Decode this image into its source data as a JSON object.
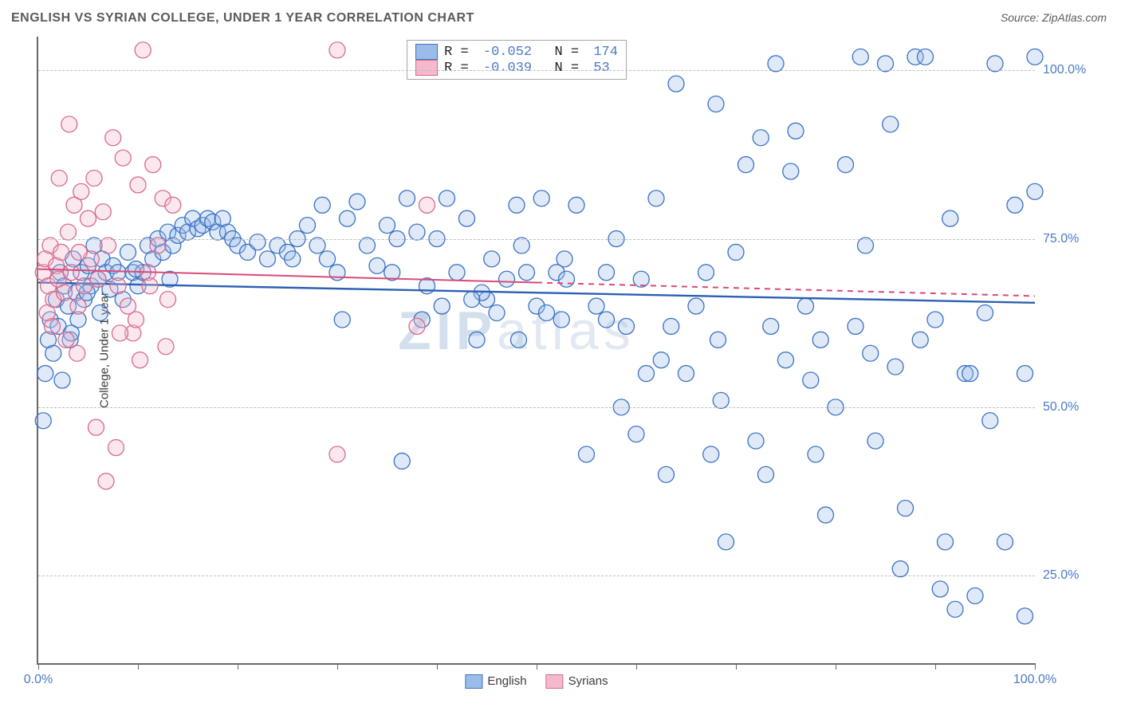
{
  "title": "ENGLISH VS SYRIAN COLLEGE, UNDER 1 YEAR CORRELATION CHART",
  "source": "Source: ZipAtlas.com",
  "ylabel": "College, Under 1 year",
  "watermark": "ZIPatlas",
  "chart": {
    "type": "scatter",
    "background_color": "#ffffff",
    "grid_color": "#bfbfbf",
    "axis_color": "#6a6a6a",
    "tick_label_color": "#4a7ac7",
    "xlim": [
      0,
      100
    ],
    "ylim": [
      12,
      105
    ],
    "yticks": [
      25,
      50,
      75,
      100
    ],
    "ytick_labels": [
      "25.0%",
      "50.0%",
      "75.0%",
      "100.0%"
    ],
    "xticks": [
      0,
      10,
      20,
      30,
      40,
      50,
      60,
      70,
      80,
      90,
      100
    ],
    "xtick_labels": {
      "0": "0.0%",
      "100": "100.0%"
    },
    "marker_radius": 10,
    "marker_stroke_width": 1.3,
    "marker_fill_opacity": 0.32,
    "series": [
      {
        "name": "English",
        "stroke": "#3a72c4",
        "fill": "#9cbce8",
        "R": "-0.052",
        "N": "174",
        "regression": {
          "x1": 0,
          "y1": 68.5,
          "x2": 100,
          "y2": 65.5,
          "solid_until_x": 100,
          "color": "#2d5fb3",
          "width": 2.4
        },
        "points": [
          [
            0.5,
            48
          ],
          [
            0.7,
            55
          ],
          [
            1,
            60
          ],
          [
            1.2,
            63
          ],
          [
            1.5,
            58
          ],
          [
            1.8,
            66
          ],
          [
            2,
            62
          ],
          [
            2.2,
            70
          ],
          [
            2.4,
            54
          ],
          [
            2.6,
            68
          ],
          [
            3,
            65
          ],
          [
            3.2,
            60
          ],
          [
            3.5,
            72
          ],
          [
            3.8,
            67
          ],
          [
            4,
            63
          ],
          [
            4.3,
            70
          ],
          [
            4.6,
            66
          ],
          [
            5,
            71
          ],
          [
            5.3,
            68
          ],
          [
            5.6,
            74
          ],
          [
            6,
            69
          ],
          [
            6.4,
            72
          ],
          [
            6.8,
            70
          ],
          [
            7.2,
            67.5
          ],
          [
            7.5,
            71
          ],
          [
            8,
            70
          ],
          [
            8.5,
            66
          ],
          [
            9,
            73
          ],
          [
            9.5,
            70
          ],
          [
            10,
            68
          ],
          [
            10.5,
            70
          ],
          [
            11,
            74
          ],
          [
            11.5,
            72
          ],
          [
            12,
            75
          ],
          [
            12.5,
            73
          ],
          [
            13,
            76
          ],
          [
            13.5,
            74
          ],
          [
            14,
            75.5
          ],
          [
            14.5,
            77
          ],
          [
            15,
            76
          ],
          [
            15.5,
            78
          ],
          [
            16,
            76.5
          ],
          [
            16.5,
            77
          ],
          [
            17,
            78
          ],
          [
            17.5,
            77.5
          ],
          [
            18,
            76
          ],
          [
            18.5,
            78
          ],
          [
            19,
            76
          ],
          [
            19.5,
            75
          ],
          [
            20,
            74
          ],
          [
            21,
            73
          ],
          [
            22,
            74.5
          ],
          [
            23,
            72
          ],
          [
            24,
            74
          ],
          [
            25,
            73
          ],
          [
            25.5,
            72
          ],
          [
            26,
            75
          ],
          [
            27,
            77
          ],
          [
            28,
            74
          ],
          [
            28.5,
            80
          ],
          [
            29,
            72
          ],
          [
            30,
            70
          ],
          [
            30.5,
            63
          ],
          [
            31,
            78
          ],
          [
            32,
            80.5
          ],
          [
            33,
            74
          ],
          [
            34,
            71
          ],
          [
            35,
            77
          ],
          [
            35.5,
            70
          ],
          [
            36,
            75
          ],
          [
            37,
            81
          ],
          [
            38,
            76
          ],
          [
            38.5,
            63
          ],
          [
            39,
            68
          ],
          [
            40,
            75
          ],
          [
            41,
            81
          ],
          [
            42,
            70
          ],
          [
            43,
            78
          ],
          [
            44,
            60
          ],
          [
            45,
            66
          ],
          [
            45.5,
            72
          ],
          [
            46,
            64
          ],
          [
            47,
            69
          ],
          [
            48,
            80
          ],
          [
            48.5,
            74
          ],
          [
            49,
            70
          ],
          [
            50,
            65
          ],
          [
            50.5,
            81
          ],
          [
            51,
            64
          ],
          [
            52,
            70
          ],
          [
            52.5,
            63
          ],
          [
            53,
            69
          ],
          [
            54,
            80
          ],
          [
            55,
            43
          ],
          [
            56,
            65
          ],
          [
            57,
            70
          ],
          [
            58,
            75
          ],
          [
            58.5,
            50
          ],
          [
            59,
            62
          ],
          [
            60,
            46
          ],
          [
            60.5,
            69
          ],
          [
            61,
            55
          ],
          [
            62,
            81
          ],
          [
            62.5,
            57
          ],
          [
            63,
            40
          ],
          [
            64,
            98
          ],
          [
            65,
            55
          ],
          [
            66,
            65
          ],
          [
            67,
            70
          ],
          [
            68,
            95
          ],
          [
            68.5,
            51
          ],
          [
            69,
            30
          ],
          [
            70,
            73
          ],
          [
            71,
            86
          ],
          [
            72,
            45
          ],
          [
            73,
            40
          ],
          [
            74,
            101
          ],
          [
            75,
            57
          ],
          [
            75.5,
            85
          ],
          [
            76,
            91
          ],
          [
            77,
            65
          ],
          [
            77.5,
            54
          ],
          [
            78,
            43
          ],
          [
            79,
            34
          ],
          [
            80,
            50
          ],
          [
            81,
            86
          ],
          [
            82,
            62
          ],
          [
            82.5,
            102
          ],
          [
            83,
            74
          ],
          [
            84,
            45
          ],
          [
            85,
            101
          ],
          [
            86,
            56
          ],
          [
            86.5,
            26
          ],
          [
            87,
            35
          ],
          [
            88,
            102
          ],
          [
            89,
            102
          ],
          [
            90,
            63
          ],
          [
            91,
            30
          ],
          [
            91.5,
            78
          ],
          [
            92,
            20
          ],
          [
            93,
            55
          ],
          [
            94,
            22
          ],
          [
            95,
            64
          ],
          [
            96,
            101
          ],
          [
            97,
            30
          ],
          [
            98,
            80
          ],
          [
            99,
            55
          ],
          [
            100,
            82
          ],
          [
            100,
            102
          ],
          [
            99,
            19
          ],
          [
            40.5,
            65
          ],
          [
            44.5,
            67
          ],
          [
            48.2,
            60
          ],
          [
            52.8,
            72
          ],
          [
            57,
            63
          ],
          [
            63.5,
            62
          ],
          [
            68.2,
            60
          ],
          [
            73.5,
            62
          ],
          [
            78.5,
            60
          ],
          [
            83.5,
            58
          ],
          [
            88.5,
            60
          ],
          [
            93.5,
            55
          ],
          [
            36.5,
            42
          ],
          [
            67.5,
            43
          ],
          [
            72.5,
            90
          ],
          [
            85.5,
            92
          ],
          [
            90.5,
            23
          ],
          [
            95.5,
            48
          ],
          [
            43.5,
            66
          ],
          [
            13.2,
            69
          ],
          [
            9.8,
            70.5
          ],
          [
            6.2,
            64
          ],
          [
            4.9,
            67
          ],
          [
            3.3,
            61
          ]
        ]
      },
      {
        "name": "Syrians",
        "stroke": "#d76a8c",
        "fill": "#f4b9cc",
        "R": "-0.039",
        "N": "53",
        "regression": {
          "x1": 0,
          "y1": 70.5,
          "x2": 100,
          "y2": 66.5,
          "solid_until_x": 50,
          "color": "#d94a7a",
          "width": 2.0
        },
        "points": [
          [
            0.5,
            70
          ],
          [
            0.7,
            72
          ],
          [
            1,
            68
          ],
          [
            1.2,
            74
          ],
          [
            1.5,
            66
          ],
          [
            1.8,
            71
          ],
          [
            2,
            69
          ],
          [
            2.3,
            73
          ],
          [
            2.6,
            67
          ],
          [
            3,
            76
          ],
          [
            3.3,
            70
          ],
          [
            3.6,
            80
          ],
          [
            4,
            65
          ],
          [
            4.3,
            82
          ],
          [
            4.6,
            68
          ],
          [
            5,
            78
          ],
          [
            5.3,
            72
          ],
          [
            5.6,
            84
          ],
          [
            6,
            69
          ],
          [
            6.5,
            79
          ],
          [
            7,
            74
          ],
          [
            7.5,
            90
          ],
          [
            8,
            68
          ],
          [
            8.5,
            87
          ],
          [
            9,
            65
          ],
          [
            9.5,
            61
          ],
          [
            10,
            83
          ],
          [
            10.5,
            103
          ],
          [
            11,
            70
          ],
          [
            11.5,
            86
          ],
          [
            12,
            74
          ],
          [
            12.5,
            81
          ],
          [
            13,
            66
          ],
          [
            2.8,
            60
          ],
          [
            3.9,
            58
          ],
          [
            5.8,
            47
          ],
          [
            6.8,
            39
          ],
          [
            7.8,
            44
          ],
          [
            1.4,
            62
          ],
          [
            0.9,
            64
          ],
          [
            4.1,
            73
          ],
          [
            8.2,
            61
          ],
          [
            9.8,
            63
          ],
          [
            11.2,
            68
          ],
          [
            12.8,
            59
          ],
          [
            13.5,
            80
          ],
          [
            30,
            103
          ],
          [
            30,
            43
          ],
          [
            38,
            62
          ],
          [
            39,
            80
          ],
          [
            10.2,
            57
          ],
          [
            2.1,
            84
          ],
          [
            3.1,
            92
          ]
        ]
      }
    ],
    "x_legend": [
      {
        "swatch_fill": "#9cbce8",
        "swatch_stroke": "#3a72c4",
        "label": "English"
      },
      {
        "swatch_fill": "#f4b9cc",
        "swatch_stroke": "#d76a8c",
        "label": "Syrians"
      }
    ]
  }
}
